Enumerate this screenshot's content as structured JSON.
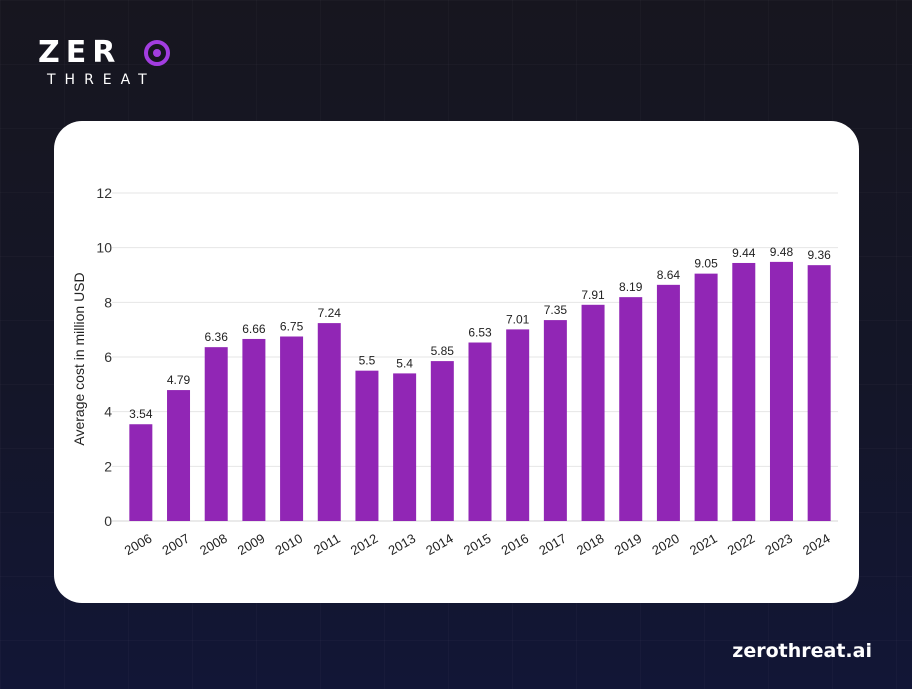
{
  "brand": {
    "logo_text": "ZERO",
    "logo_subtext": "THREAT",
    "website": "zerothreat.ai",
    "accent_color": "#a23de0"
  },
  "chart_data": {
    "type": "bar",
    "title": "",
    "xlabel": "",
    "ylabel": "Average cost in million USD",
    "ylim": [
      0,
      12
    ],
    "yticks": [
      0,
      2,
      4,
      6,
      8,
      10,
      12
    ],
    "grid": true,
    "bar_color": "#9126b5",
    "categories": [
      "2006",
      "2007",
      "2008",
      "2009",
      "2010",
      "2011",
      "2012",
      "2013",
      "2014",
      "2015",
      "2016",
      "2017",
      "2018",
      "2019",
      "2020",
      "2021",
      "2022",
      "2023",
      "2024"
    ],
    "values": [
      3.54,
      4.79,
      6.36,
      6.66,
      6.75,
      7.24,
      5.5,
      5.4,
      5.85,
      6.53,
      7.01,
      7.35,
      7.91,
      8.19,
      8.64,
      9.05,
      9.44,
      9.48,
      9.36
    ],
    "data_labels": [
      "3.54",
      "4.79",
      "6.36",
      "6.66",
      "6.75",
      "7.24",
      "5.5",
      "5.4",
      "5.85",
      "6.53",
      "7.01",
      "7.35",
      "7.91",
      "8.19",
      "8.64",
      "9.05",
      "9.44",
      "9.48",
      "9.36"
    ]
  }
}
